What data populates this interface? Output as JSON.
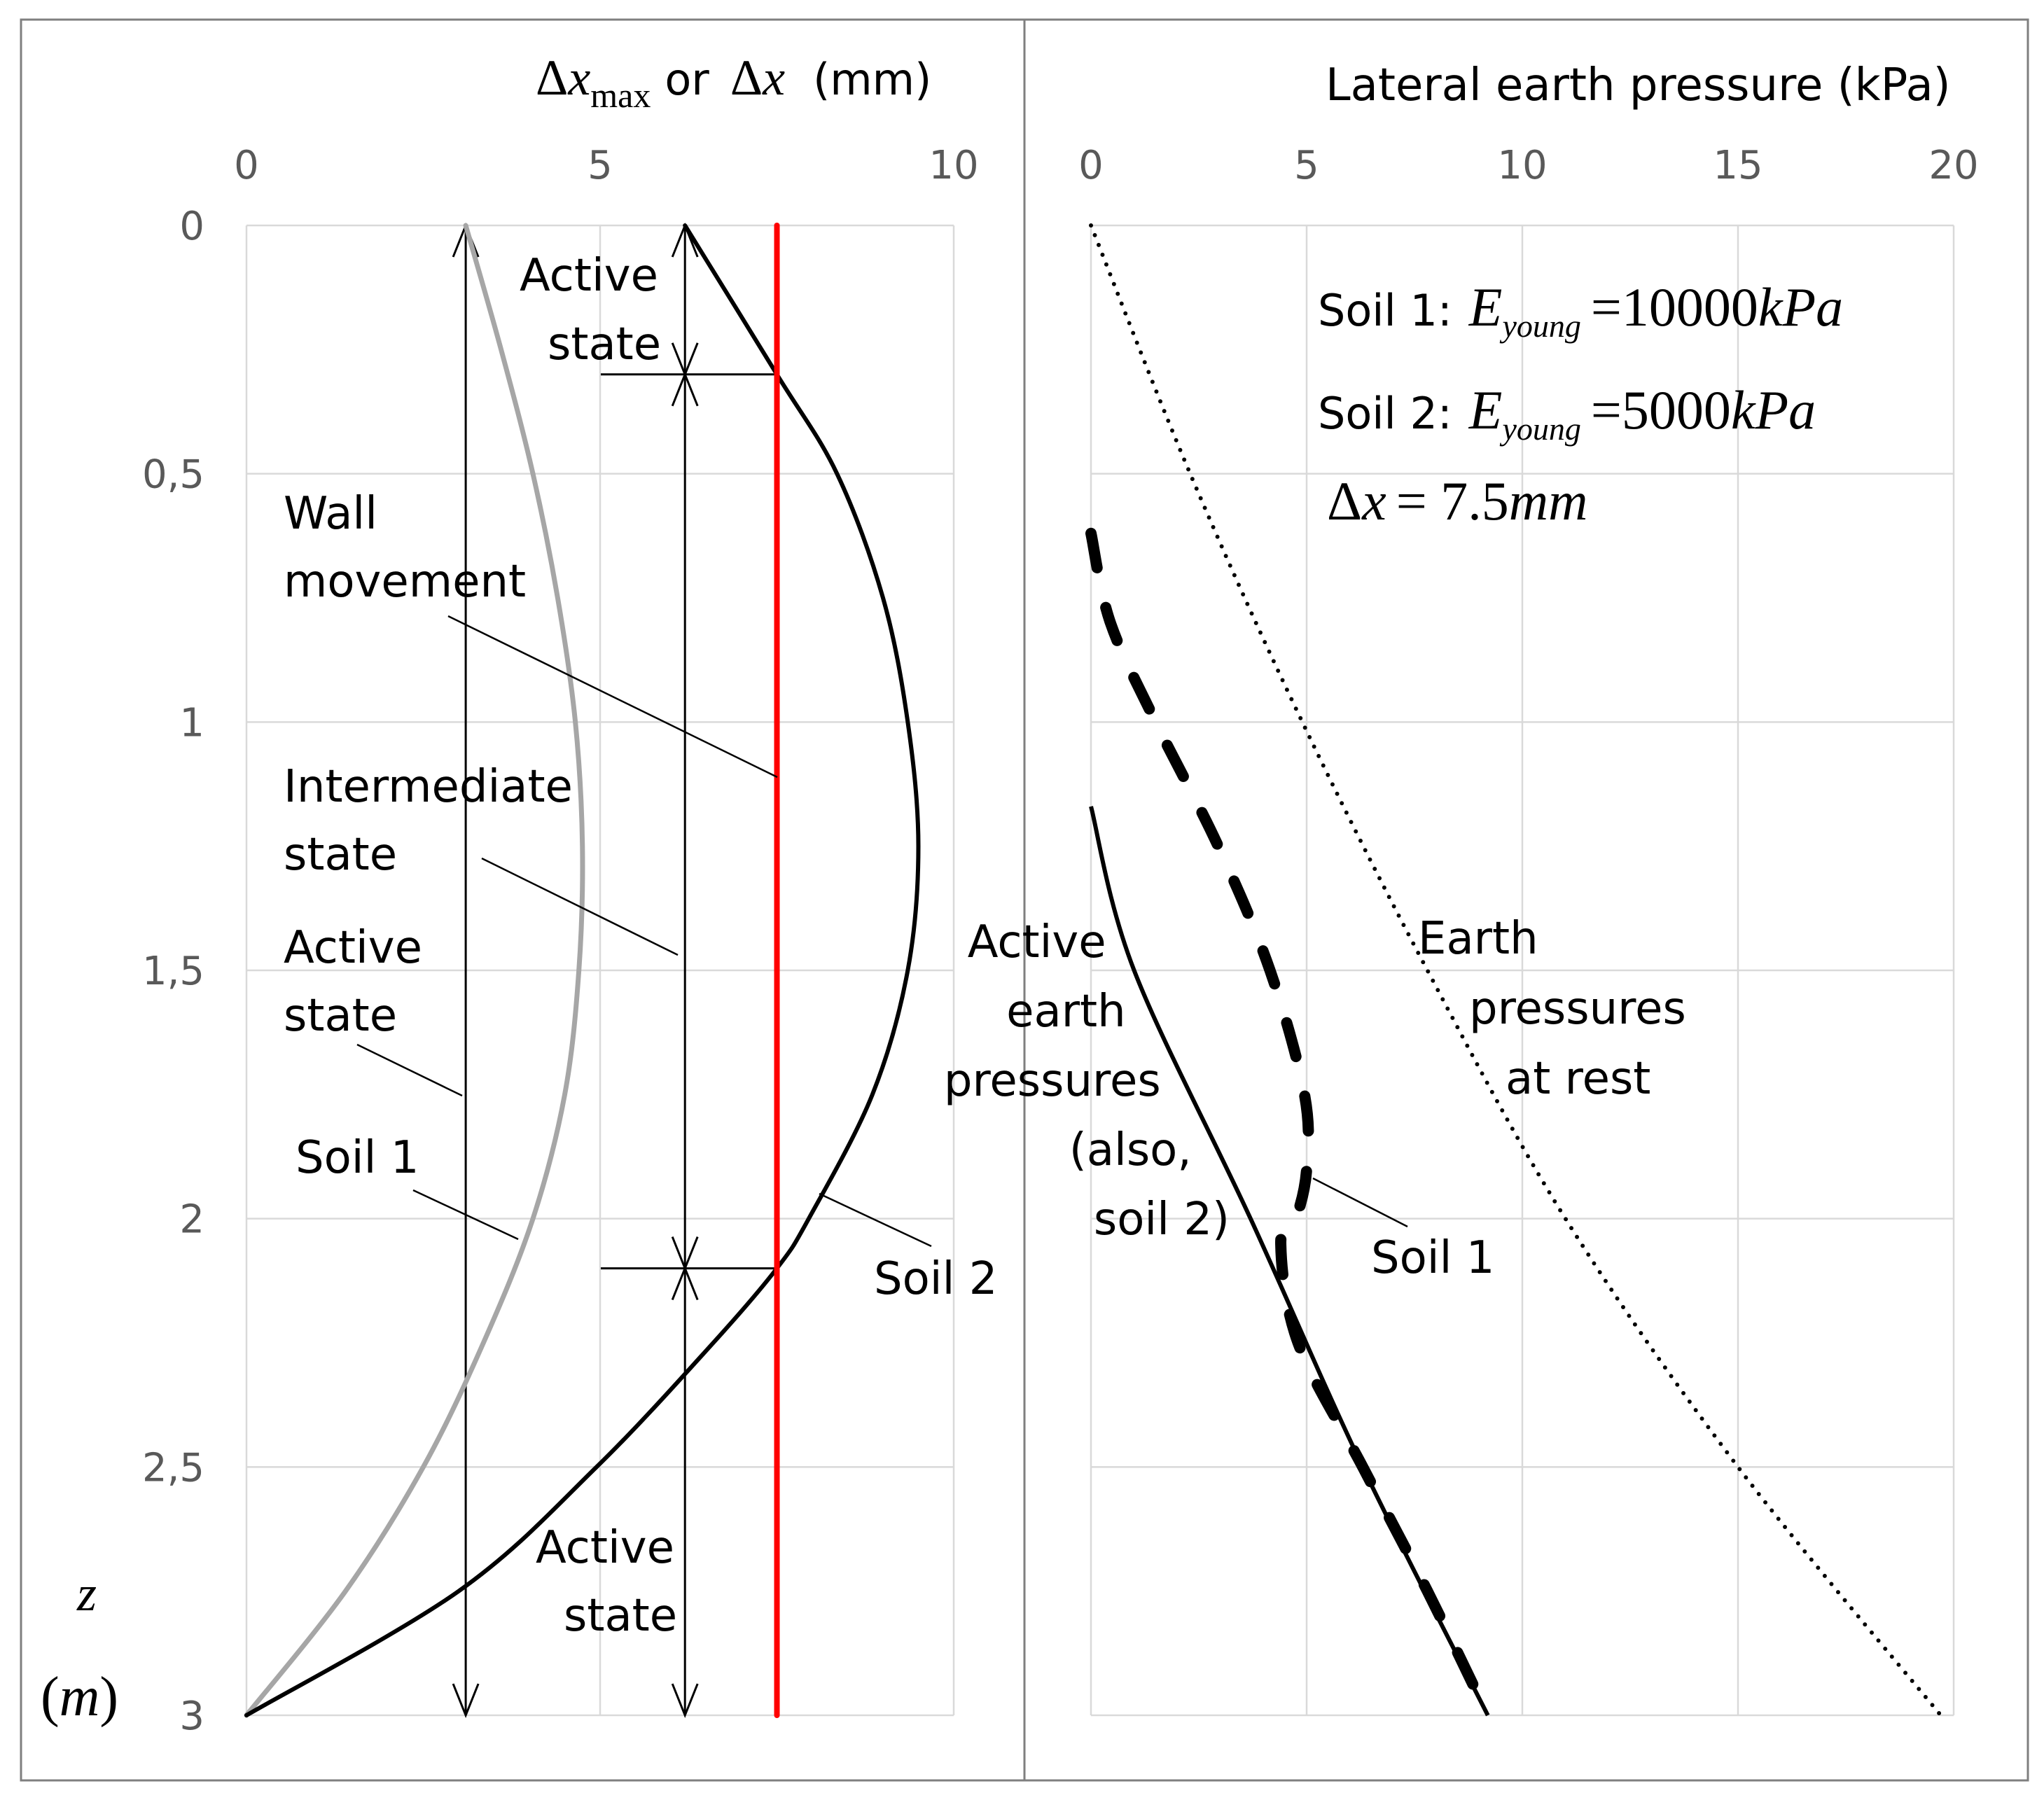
{
  "colors": {
    "grid": "#d9d9d9",
    "tick_text": "#595959",
    "soil1_displacement": "#a6a6a6",
    "wall_movement": "#ff0000",
    "ink": "#000000",
    "frame": "#7f7f7f"
  },
  "chart_data": [
    {
      "type": "line",
      "panel": "left",
      "xlabel": {
        "prefix": "Δ",
        "var": "x",
        "sub": "max",
        "conj": "or",
        "prefix2": "Δ",
        "var2": "x",
        "unit": "(mm)"
      },
      "ylabel": {
        "var": "z",
        "unit": "m",
        "open": "(",
        "close": ")"
      },
      "xlim": [
        0,
        10
      ],
      "ylim": [
        0,
        3
      ],
      "y_inverted": true,
      "x_axis_position": "top",
      "grid": true,
      "xticks": [
        0,
        5,
        10
      ],
      "xtick_labels": [
        "0",
        "5",
        "10"
      ],
      "yticks": [
        0,
        0.5,
        1,
        1.5,
        2,
        2.5,
        3
      ],
      "ytick_labels": [
        "0",
        "0,5",
        "1",
        "1,5",
        "2",
        "2,5",
        "3"
      ],
      "series": [
        {
          "key": "soil1",
          "style": "solid-gray",
          "z": [
            0,
            0.25,
            0.5,
            0.75,
            1.0,
            1.25,
            1.5,
            1.75,
            2.0,
            2.25,
            2.5,
            2.75,
            3.0
          ],
          "x": [
            3.1,
            3.6,
            4.05,
            4.4,
            4.65,
            4.75,
            4.7,
            4.5,
            4.05,
            3.35,
            2.5,
            1.4,
            0
          ]
        },
        {
          "key": "soil2",
          "style": "solid-black",
          "z": [
            0,
            0.3,
            0.5,
            0.75,
            1.0,
            1.25,
            1.5,
            1.75,
            2.0,
            2.1,
            2.25,
            2.5,
            2.75,
            3.0
          ],
          "x": [
            6.2,
            7.5,
            8.35,
            9.0,
            9.35,
            9.5,
            9.35,
            8.85,
            7.95,
            7.5,
            6.6,
            4.95,
            3.0,
            0
          ]
        },
        {
          "key": "wall",
          "style": "solid-red",
          "z": [
            0,
            3
          ],
          "x": [
            7.5,
            7.5
          ]
        }
      ],
      "dimension_lines": {
        "soil1_x": 3.1,
        "soil2_x": 6.2,
        "soil2_ticks_z": [
          0.3,
          2.1
        ]
      },
      "annotations": {
        "active_top": [
          "Active",
          "state"
        ],
        "wall": [
          "Wall",
          "movement"
        ],
        "intermediate": [
          "Intermediate",
          "state"
        ],
        "active_mid": [
          "Active",
          "state"
        ],
        "soil1": "Soil 1",
        "soil2": "Soil 2",
        "active_bottom": [
          "Active",
          "state"
        ]
      }
    },
    {
      "type": "line",
      "panel": "right",
      "xlabel": "Lateral earth pressure (kPa)",
      "xlim": [
        0,
        20
      ],
      "ylim": [
        0,
        3
      ],
      "y_inverted": true,
      "x_axis_position": "top",
      "grid": true,
      "xticks": [
        0,
        5,
        10,
        15,
        20
      ],
      "xtick_labels": [
        "0",
        "5",
        "10",
        "15",
        "20"
      ],
      "series": [
        {
          "key": "at_rest",
          "style": "dotted",
          "z": [
            0,
            0.5,
            1.0,
            1.5,
            2.0,
            2.5,
            3.0
          ],
          "x": [
            0,
            2.3,
            4.9,
            7.8,
            11.0,
            15.0,
            19.7
          ]
        },
        {
          "key": "active",
          "style": "solid-black",
          "z": [
            1.17,
            1.5,
            2.0,
            2.5,
            3.0
          ],
          "x": [
            0,
            1.0,
            3.7,
            6.3,
            9.2
          ]
        },
        {
          "key": "soil1",
          "style": "dashed-thick",
          "z": [
            0.62,
            0.8,
            1.0,
            1.25,
            1.5,
            1.75,
            1.9,
            2.0,
            2.05,
            2.25,
            2.5,
            2.75,
            3.0
          ],
          "x": [
            0,
            0.45,
            1.5,
            2.95,
            4.15,
            4.95,
            5.0,
            4.75,
            4.4,
            4.8,
            6.3,
            7.8,
            9.2
          ]
        }
      ],
      "annotations": {
        "active": [
          "Active",
          "earth",
          "pressures",
          "(also,",
          "soil 2)"
        ],
        "at_rest": [
          "Earth",
          "pressures",
          "at rest"
        ],
        "soil1": "Soil 1"
      },
      "legend_box": {
        "row1_prefix": "Soil 1:",
        "row1_E": "E",
        "row1_sub": "young",
        "row1_value": "=10000",
        "row1_unit": "kPa",
        "row2_prefix": "Soil 2:",
        "row2_E": "E",
        "row2_sub": "young",
        "row2_value": "=5000",
        "row2_unit": "kPa",
        "row3_delta": "Δ",
        "row3_var": "x",
        "row3_value": "= 7.5",
        "row3_unit": "mm"
      }
    }
  ]
}
